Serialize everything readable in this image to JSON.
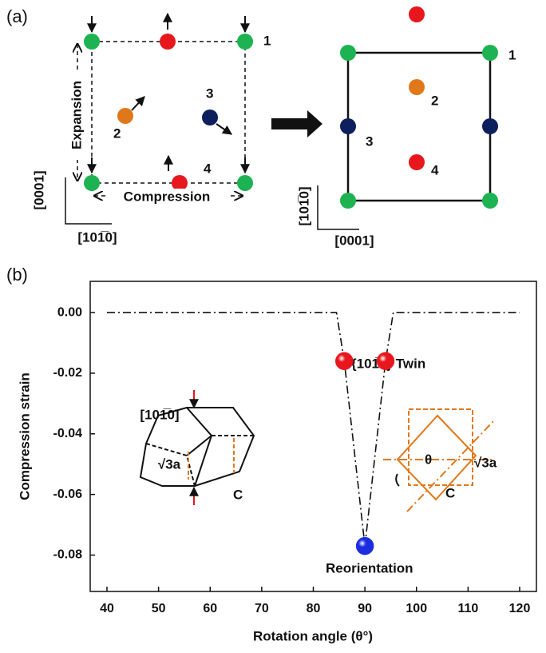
{
  "panel_a": {
    "label": "(a)",
    "left": {
      "expansion": "Expansion",
      "compression": "Compression",
      "axis_vertical": "[0001]",
      "axis_horizontal": "[101̅0]",
      "sites": [
        "1",
        "2",
        "3",
        "4"
      ]
    },
    "right": {
      "axis_vertical": "[101̅0]",
      "axis_horizontal": "[0001]",
      "sites": [
        "1",
        "2",
        "3",
        "4"
      ]
    }
  },
  "chart_data": {
    "type": "line",
    "panel_label": "(b)",
    "x_label": "Rotation angle (θ°)",
    "y_label": "Compression strain",
    "xlim": [
      36.75,
      123.25
    ],
    "ylim": [
      -0.092,
      0.0103
    ],
    "xticks": [
      40,
      50,
      60,
      70,
      80,
      90,
      100,
      110,
      120
    ],
    "yticks": [
      {
        "value": 0,
        "label": "0.00"
      },
      {
        "value": -0.02,
        "label": "-0.02"
      },
      {
        "value": -0.04,
        "label": "-0.04"
      },
      {
        "value": -0.06,
        "label": "-0.06"
      },
      {
        "value": -0.08,
        "label": "-0.08"
      }
    ],
    "line": {
      "x": [
        40,
        84.5,
        86,
        90,
        94,
        95.5,
        120
      ],
      "values": [
        0,
        0,
        -0.016,
        -0.077,
        -0.016,
        0,
        0
      ],
      "color": "#111111"
    },
    "points": {
      "x": [
        86,
        94,
        90
      ],
      "values": [
        -0.016,
        -0.016,
        -0.077
      ],
      "colors": [
        "#e8171d",
        "#e8171d",
        "#1c2de0"
      ]
    },
    "annotations": [
      "{101̅2} Twin",
      "Reorientation"
    ],
    "insets": {
      "left": {
        "direction": "[101̅0]",
        "edge": "√3a",
        "axis": "C"
      },
      "right": {
        "angle": "θ",
        "edge": "√3a",
        "axis": "C"
      }
    }
  }
}
